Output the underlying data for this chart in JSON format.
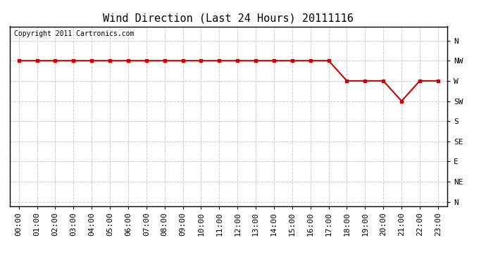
{
  "title": "Wind Direction (Last 24 Hours) 20111116",
  "copyright_text": "Copyright 2011 Cartronics.com",
  "line_color": "#cc0000",
  "background_color": "#ffffff",
  "plot_background": "#ffffff",
  "ytick_labels": [
    "N",
    "NW",
    "W",
    "SW",
    "S",
    "SE",
    "E",
    "NE",
    "N"
  ],
  "ytick_values": [
    8,
    7,
    6,
    5,
    4,
    3,
    2,
    1,
    0
  ],
  "xtick_labels": [
    "00:00",
    "01:00",
    "02:00",
    "03:00",
    "04:00",
    "05:00",
    "06:00",
    "07:00",
    "08:00",
    "09:00",
    "10:00",
    "11:00",
    "12:00",
    "13:00",
    "14:00",
    "15:00",
    "16:00",
    "17:00",
    "18:00",
    "19:00",
    "20:00",
    "21:00",
    "22:00",
    "23:00"
  ],
  "x_values": [
    0,
    1,
    2,
    3,
    4,
    5,
    6,
    7,
    8,
    9,
    10,
    11,
    12,
    13,
    14,
    15,
    16,
    17,
    18,
    19,
    20,
    21,
    22,
    23
  ],
  "y_values": [
    7,
    7,
    7,
    7,
    7,
    7,
    7,
    7,
    7,
    7,
    7,
    7,
    7,
    7,
    7,
    7,
    7,
    7,
    6,
    6,
    6,
    5,
    6,
    6
  ],
  "ylim": [
    -0.2,
    8.7
  ],
  "xlim": [
    -0.5,
    23.5
  ],
  "grid_color": "#cccccc",
  "marker": "s",
  "marker_size": 3,
  "line_width": 1.5,
  "title_fontsize": 11,
  "copyright_fontsize": 7,
  "tick_fontsize": 8
}
